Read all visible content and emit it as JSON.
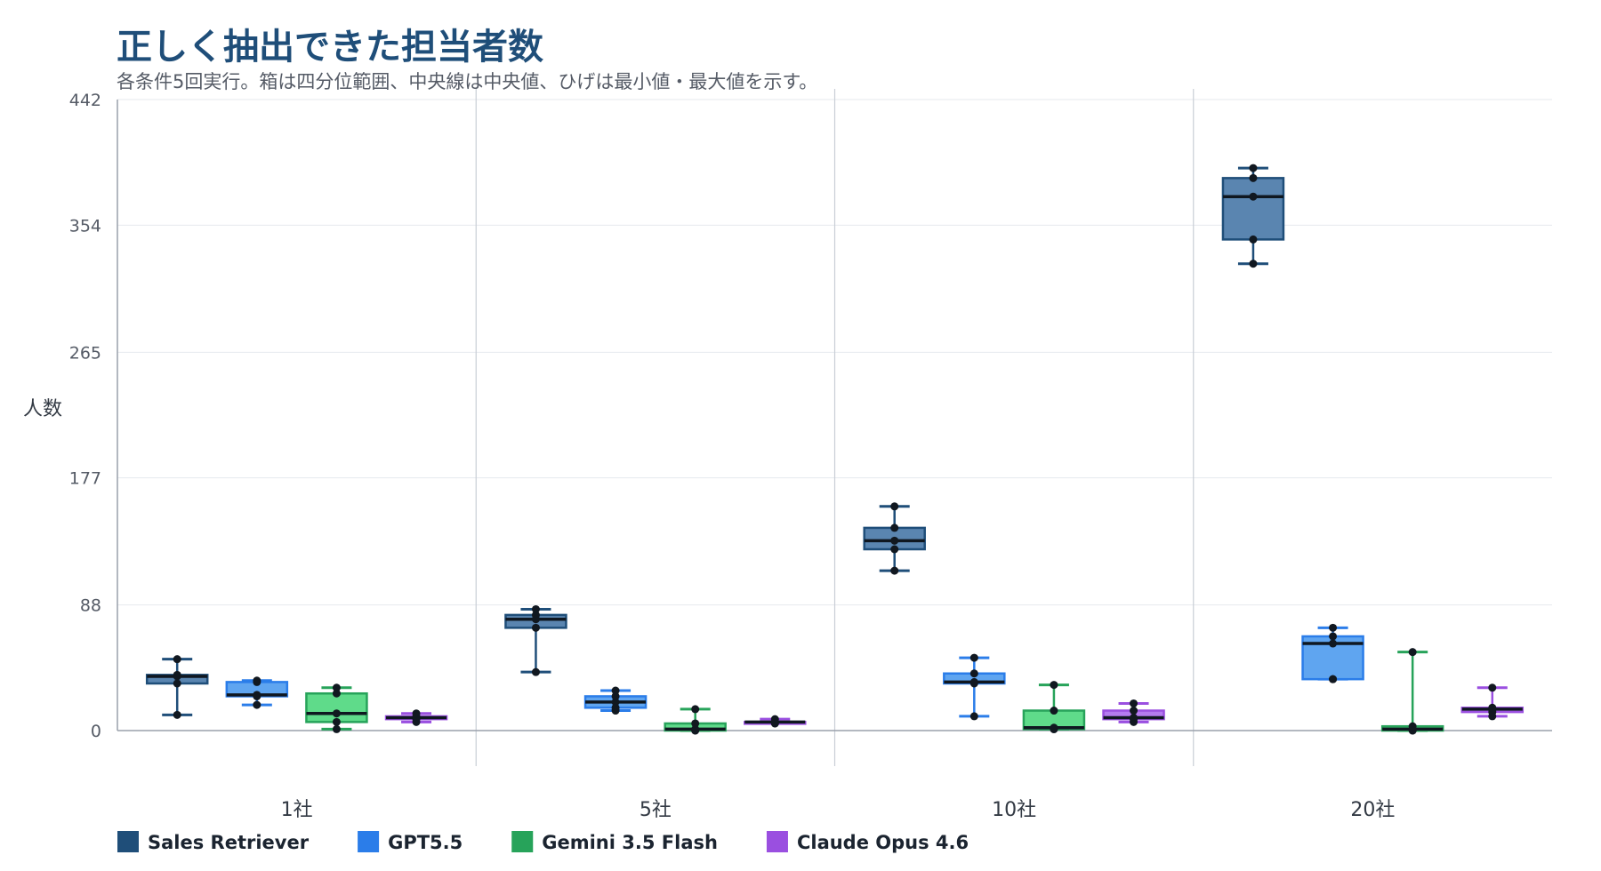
{
  "chart_data": {
    "type": "boxplot",
    "title": "正しく抽出できた担当者数",
    "subtitle": "各条件5回実行。箱は四分位範囲、中央線は中央値、ひげは最小値・最大値を示す。",
    "ylabel": "人数",
    "xlabel": "",
    "ylim": [
      0,
      442
    ],
    "yticks": [
      0,
      88,
      177,
      265,
      354,
      442
    ],
    "grid": true,
    "legend_position": "bottom-left",
    "categories": [
      "1社",
      "5社",
      "10社",
      "20社"
    ],
    "series": [
      {
        "name": "Sales Retriever",
        "color": "#1f4e79",
        "fill": "#5a85b0",
        "stats": [
          {
            "min": 11,
            "q1": 33,
            "median": 38,
            "q3": 39,
            "max": 50,
            "points": [
              11,
              33,
              38,
              39,
              50
            ]
          },
          {
            "min": 41,
            "q1": 72,
            "median": 78,
            "q3": 81,
            "max": 85,
            "points": [
              41,
              72,
              78,
              81,
              85
            ]
          },
          {
            "min": 112,
            "q1": 127,
            "median": 133,
            "q3": 142,
            "max": 157,
            "points": [
              112,
              127,
              133,
              142,
              157
            ]
          },
          {
            "min": 327,
            "q1": 344,
            "median": 374,
            "q3": 387,
            "max": 394,
            "points": [
              327,
              344,
              374,
              387,
              394
            ]
          }
        ]
      },
      {
        "name": "GPT5.5",
        "color": "#2b7de9",
        "fill": "#5fa5f0",
        "stats": [
          {
            "min": 18,
            "q1": 24,
            "median": 25,
            "q3": 34,
            "max": 35,
            "points": [
              18,
              24,
              25,
              34,
              35
            ]
          },
          {
            "min": 14,
            "q1": 16,
            "median": 20,
            "q3": 24,
            "max": 28,
            "points": [
              14,
              16,
              20,
              24,
              28
            ]
          },
          {
            "min": 10,
            "q1": 33,
            "median": 34,
            "q3": 40,
            "max": 51,
            "points": [
              10,
              33,
              34,
              40,
              51
            ]
          },
          {
            "min": 36,
            "q1": 36,
            "median": 61,
            "q3": 66,
            "max": 72,
            "points": [
              36,
              36,
              61,
              66,
              72
            ]
          }
        ]
      },
      {
        "name": "Gemini 3.5 Flash",
        "color": "#27a35a",
        "fill": "#5fdb8a",
        "stats": [
          {
            "min": 1,
            "q1": 6,
            "median": 12,
            "q3": 26,
            "max": 30,
            "points": [
              1,
              6,
              12,
              26,
              30
            ]
          },
          {
            "min": 0,
            "q1": 0,
            "median": 1,
            "q3": 5,
            "max": 15,
            "points": [
              0,
              0,
              1,
              5,
              15
            ]
          },
          {
            "min": 1,
            "q1": 1,
            "median": 2,
            "q3": 14,
            "max": 32,
            "points": [
              1,
              1,
              2,
              14,
              32
            ]
          },
          {
            "min": 0,
            "q1": 0,
            "median": 1,
            "q3": 3,
            "max": 55,
            "points": [
              0,
              0,
              1,
              3,
              55
            ]
          }
        ]
      },
      {
        "name": "Claude Opus 4.6",
        "color": "#9a4fe0",
        "fill": "#b57cf0",
        "stats": [
          {
            "min": 6,
            "q1": 8,
            "median": 9,
            "q3": 10,
            "max": 12,
            "points": [
              6,
              8,
              9,
              10,
              12
            ]
          },
          {
            "min": 5,
            "q1": 5,
            "median": 6,
            "q3": 6,
            "max": 8,
            "points": [
              5,
              5,
              6,
              6,
              8
            ]
          },
          {
            "min": 6,
            "q1": 8,
            "median": 9,
            "q3": 14,
            "max": 19,
            "points": [
              6,
              8,
              9,
              14,
              19
            ]
          },
          {
            "min": 10,
            "q1": 13,
            "median": 15,
            "q3": 16,
            "max": 30,
            "points": [
              10,
              13,
              15,
              16,
              30
            ]
          }
        ]
      }
    ]
  }
}
